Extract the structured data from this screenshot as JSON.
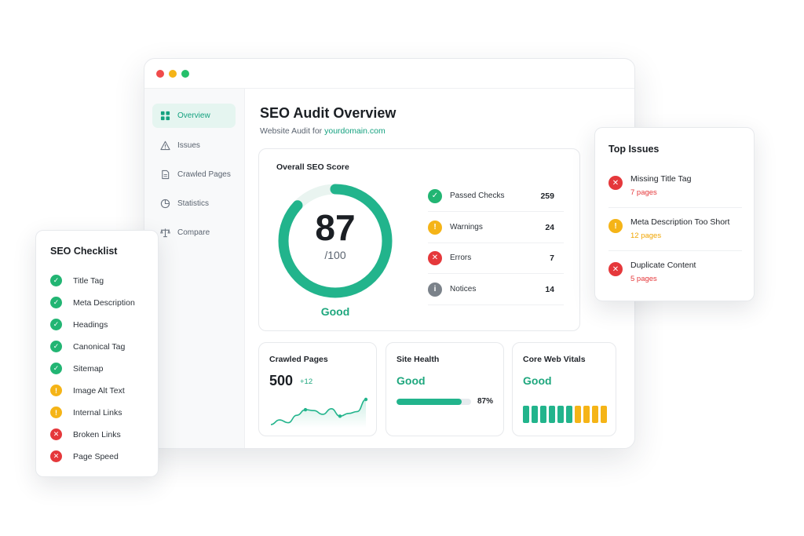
{
  "sidebar": {
    "items": [
      {
        "label": "Overview",
        "icon": "grid-icon",
        "active": true
      },
      {
        "label": "Issues",
        "icon": "warning-icon",
        "active": false
      },
      {
        "label": "Crawled Pages",
        "icon": "document-icon",
        "active": false
      },
      {
        "label": "Statistics",
        "icon": "pie-chart-icon",
        "active": false
      },
      {
        "label": "Compare",
        "icon": "scale-icon",
        "active": false
      }
    ]
  },
  "main": {
    "title": "SEO Audit Overview",
    "subtitle_prefix": "Website Audit for",
    "domain": "yourdomain.com"
  },
  "score": {
    "title": "Overall SEO Score",
    "value": "87",
    "max_label": "/100",
    "fraction": 0.87,
    "rating": "Good",
    "accent": "#22b48c"
  },
  "stats": [
    {
      "label": "Passed Checks",
      "value": "259",
      "status": "passed"
    },
    {
      "label": "Warnings",
      "value": "24",
      "status": "warning"
    },
    {
      "label": "Errors",
      "value": "7",
      "status": "error"
    },
    {
      "label": "Notices",
      "value": "14",
      "status": "notice"
    }
  ],
  "crawled": {
    "title": "Crawled Pages",
    "value": "500",
    "delta": "+12",
    "sparkline": [
      3,
      4,
      3.4,
      5,
      6.2,
      6,
      5.2,
      6.4,
      4.8,
      5.4,
      5.8,
      8.4
    ]
  },
  "health": {
    "title": "Site Health",
    "rating": "Good",
    "percent_label": "87%",
    "fraction": 0.87
  },
  "vitals": {
    "title": "Core Web Vitals",
    "rating": "Good",
    "bars": [
      "green",
      "green",
      "green",
      "green",
      "green",
      "green",
      "yellow",
      "yellow",
      "yellow",
      "yellow"
    ]
  },
  "checklist": {
    "title": "SEO Checklist",
    "items": [
      {
        "label": "Title Tag",
        "status": "pass"
      },
      {
        "label": "Meta Description",
        "status": "pass"
      },
      {
        "label": "Headings",
        "status": "pass"
      },
      {
        "label": "Canonical Tag",
        "status": "pass"
      },
      {
        "label": "Sitemap",
        "status": "pass"
      },
      {
        "label": "Image Alt Text",
        "status": "warn"
      },
      {
        "label": "Internal Links",
        "status": "warn"
      },
      {
        "label": "Broken Links",
        "status": "fail"
      },
      {
        "label": "Page Speed",
        "status": "fail"
      }
    ]
  },
  "top_issues": {
    "title": "Top Issues",
    "items": [
      {
        "label": "Missing Title Tag",
        "count": "7 pages",
        "severity": "error",
        "color": "#e5383b"
      },
      {
        "label": "Meta Description Too Short",
        "count": "12 pages",
        "severity": "warning",
        "color": "#f0a500"
      },
      {
        "label": "Duplicate Content",
        "count": "5 pages",
        "severity": "error",
        "color": "#e5383b"
      }
    ]
  }
}
